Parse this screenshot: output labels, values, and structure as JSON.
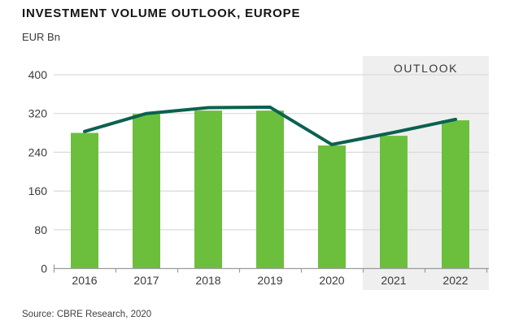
{
  "header": {
    "title": "INVESTMENT VOLUME OUTLOOK, EUROPE",
    "unit_label": "EUR Bn"
  },
  "footer": {
    "source": "Source: CBRE Research, 2020"
  },
  "chart_data": {
    "type": "bar",
    "title": "INVESTMENT VOLUME OUTLOOK, EUROPE",
    "xlabel": "",
    "ylabel": "EUR Bn",
    "categories": [
      "2016",
      "2017",
      "2018",
      "2019",
      "2020",
      "2021",
      "2022"
    ],
    "series": [
      {
        "name": "Investment volume",
        "type": "bar",
        "color": "#6CBF3D",
        "values": [
          280,
          319,
          326,
          326,
          254,
          274,
          306
        ]
      },
      {
        "name": "Trend line",
        "type": "line",
        "color": "#0B6150",
        "values": [
          283,
          320,
          332,
          333,
          256,
          281,
          308
        ]
      }
    ],
    "ylim": [
      0,
      400
    ],
    "yticks": [
      0,
      80,
      160,
      240,
      320,
      400
    ],
    "grid": true,
    "legend": false,
    "outlook": {
      "label": "OUTLOOK",
      "start_category": "2021",
      "end_category": "2022",
      "background": "#EFEFEF"
    },
    "style_colors": {
      "gridline": "#D9D9D9",
      "axis": "#9B9B9B",
      "tick_text": "#3A3A3A"
    }
  }
}
